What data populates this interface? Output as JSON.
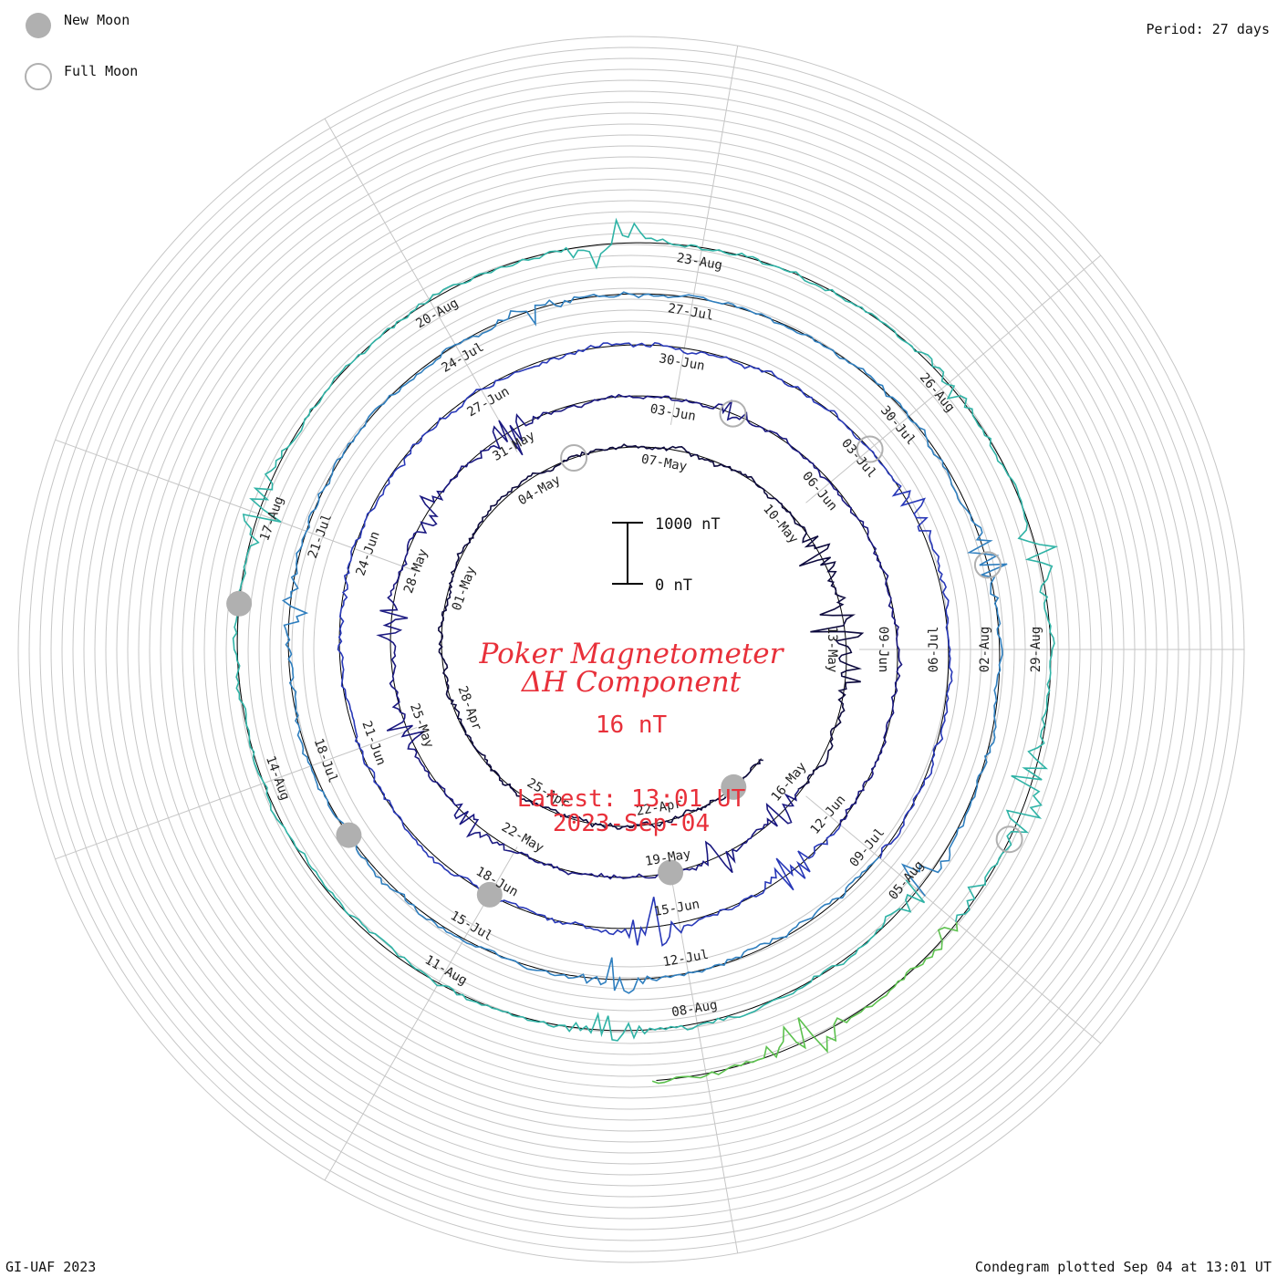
{
  "legend": {
    "new_moon": "New Moon",
    "full_moon": "Full Moon"
  },
  "period_label": "Period: 27 days",
  "footer_left": "GI-UAF 2023",
  "footer_right": "Condegram plotted Sep 04 at 13:01 UT",
  "center": {
    "title_line1": "Poker Magnetometer",
    "title_line2": "ΔH Component",
    "value": "16 nT",
    "latest_line1": "Latest: 13:01 UT",
    "latest_line2": "2023-Sep-04"
  },
  "scale_bar": {
    "top_label": "1000 nT",
    "bottom_label": "0 nT"
  },
  "chart_data": {
    "type": "line",
    "subtype": "spiral condegram",
    "period_days": 27,
    "start_date": "2023-04-19",
    "end_date": "2023-09-04",
    "series_colors": [
      "#0d0a3e",
      "#1a1880",
      "#2838b8",
      "#2f7fbf",
      "#2fb3a6",
      "#5cc14e",
      "#a9b823",
      "#c8a31e",
      "#cc6e12",
      "#b8150e"
    ],
    "date_labels": [
      "22-Apr",
      "25-Apr",
      "28-Apr",
      "01-May",
      "04-May",
      "07-May",
      "10-May",
      "13-May",
      "16-May",
      "19-May",
      "22-May",
      "25-May",
      "28-May",
      "31-May",
      "03-Jun",
      "06-Jun",
      "09-Jun",
      "12-Jun",
      "15-Jun",
      "18-Jun",
      "21-Jun",
      "24-Jun",
      "27-Jun",
      "30-Jun",
      "03-Jul",
      "06-Jul",
      "09-Jul",
      "12-Jul",
      "15-Jul",
      "18-Jul",
      "21-Jul",
      "24-Jul",
      "27-Jul",
      "30-Jul",
      "02-Aug",
      "05-Aug",
      "08-Aug",
      "11-Aug",
      "14-Aug",
      "17-Aug",
      "20-Aug",
      "23-Aug",
      "26-Aug",
      "29-Aug"
    ],
    "new_moons": [
      "2023-04-20",
      "2023-05-19",
      "2023-06-18",
      "2023-07-17",
      "2023-08-16"
    ],
    "full_moons": [
      "2023-05-05",
      "2023-06-04",
      "2023-07-03",
      "2023-08-01",
      "2023-08-31"
    ],
    "disturbances_nT": [
      {
        "day": 22,
        "amp": 350
      },
      {
        "day": 23.5,
        "amp": 450
      },
      {
        "day": 24.5,
        "amp": 300
      },
      {
        "day": 27.5,
        "amp": 250
      },
      {
        "day": 29,
        "amp": 200
      },
      {
        "day": 34,
        "amp": 150
      },
      {
        "day": 36,
        "amp": 220
      },
      {
        "day": 38,
        "amp": 180
      },
      {
        "day": 40,
        "amp": 200
      },
      {
        "day": 42,
        "amp": 260
      },
      {
        "day": 46,
        "amp": 150
      },
      {
        "day": 55,
        "amp": 300
      },
      {
        "day": 57.5,
        "amp": 400
      },
      {
        "day": 76,
        "amp": 200
      },
      {
        "day": 85,
        "amp": 250
      },
      {
        "day": 92,
        "amp": 200
      },
      {
        "day": 97,
        "amp": 150
      },
      {
        "day": 104,
        "amp": 250
      },
      {
        "day": 108,
        "amp": 300
      },
      {
        "day": 112,
        "amp": 200
      },
      {
        "day": 120,
        "amp": 250
      },
      {
        "day": 125,
        "amp": 350
      },
      {
        "day": 129,
        "amp": 150
      },
      {
        "day": 131,
        "amp": 200
      },
      {
        "day": 133.5,
        "amp": 450
      },
      {
        "day": 135,
        "amp": 250
      },
      {
        "day": 137,
        "amp": 350
      }
    ]
  }
}
